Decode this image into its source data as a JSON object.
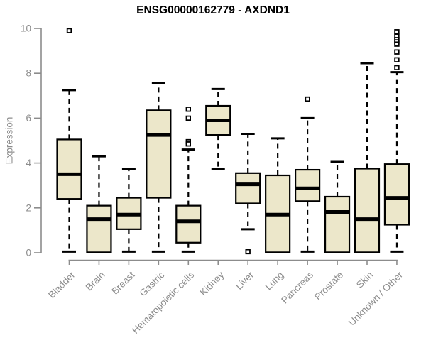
{
  "chart_data": {
    "type": "boxplot",
    "title": "ENSG00000162779 - AXDND1",
    "ylabel": "Expression",
    "xlabel": "",
    "ylim": [
      0,
      10
    ],
    "yticks": [
      0,
      2,
      4,
      6,
      8,
      10
    ],
    "grid": false,
    "legend_position": "none",
    "colors": {
      "box_fill": "#ece7ca",
      "box_stroke": "#000000",
      "median": "#000000",
      "whisker": "#000000",
      "outlier_stroke": "#000000",
      "axis": "#8c8c8c",
      "tick_label": "#8c8c8c",
      "title": "#000000"
    },
    "categories": [
      "Bladder",
      "Brain",
      "Breast",
      "Gastric",
      "Hematopoietic cells",
      "Kidney",
      "Liver",
      "Lung",
      "Pancreas",
      "Prostate",
      "Skin",
      "Unknown / Other"
    ],
    "series": [
      {
        "name": "Bladder",
        "whisker_low": 0.05,
        "q1": 2.4,
        "median": 3.5,
        "q3": 5.05,
        "whisker_high": 7.25,
        "outliers": [
          9.9
        ]
      },
      {
        "name": "Brain",
        "whisker_low": 0.02,
        "q1": 0.02,
        "median": 1.5,
        "q3": 2.1,
        "whisker_high": 4.3,
        "outliers": []
      },
      {
        "name": "Breast",
        "whisker_low": 0.05,
        "q1": 1.05,
        "median": 1.7,
        "q3": 2.45,
        "whisker_high": 3.75,
        "outliers": []
      },
      {
        "name": "Gastric",
        "whisker_low": 0.05,
        "q1": 2.45,
        "median": 5.25,
        "q3": 6.35,
        "whisker_high": 7.55,
        "outliers": []
      },
      {
        "name": "Hematopoietic cells",
        "whisker_low": 0.05,
        "q1": 0.45,
        "median": 1.4,
        "q3": 2.1,
        "whisker_high": 4.6,
        "outliers": [
          6.4,
          6.0,
          4.95,
          4.85
        ]
      },
      {
        "name": "Kidney",
        "whisker_low": 3.75,
        "q1": 5.25,
        "median": 5.9,
        "q3": 6.55,
        "whisker_high": 7.3,
        "outliers": []
      },
      {
        "name": "Liver",
        "whisker_low": 1.05,
        "q1": 2.2,
        "median": 3.05,
        "q3": 3.55,
        "whisker_high": 5.3,
        "outliers": [
          0.05
        ]
      },
      {
        "name": "Lung",
        "whisker_low": 0.02,
        "q1": 0.02,
        "median": 1.7,
        "q3": 3.45,
        "whisker_high": 5.1,
        "outliers": []
      },
      {
        "name": "Pancreas",
        "whisker_low": 0.05,
        "q1": 2.3,
        "median": 2.87,
        "q3": 3.7,
        "whisker_high": 6.0,
        "outliers": [
          6.85
        ]
      },
      {
        "name": "Prostate",
        "whisker_low": 0.02,
        "q1": 0.02,
        "median": 1.82,
        "q3": 2.5,
        "whisker_high": 4.05,
        "outliers": []
      },
      {
        "name": "Skin",
        "whisker_low": 0.02,
        "q1": 0.02,
        "median": 1.5,
        "q3": 3.75,
        "whisker_high": 8.45,
        "outliers": []
      },
      {
        "name": "Unknown / Other",
        "whisker_low": 0.05,
        "q1": 1.25,
        "median": 2.45,
        "q3": 3.95,
        "whisker_high": 8.05,
        "outliers": [
          9.85,
          9.65,
          9.5,
          9.4,
          9.3,
          8.95,
          8.6,
          8.25
        ]
      }
    ]
  }
}
